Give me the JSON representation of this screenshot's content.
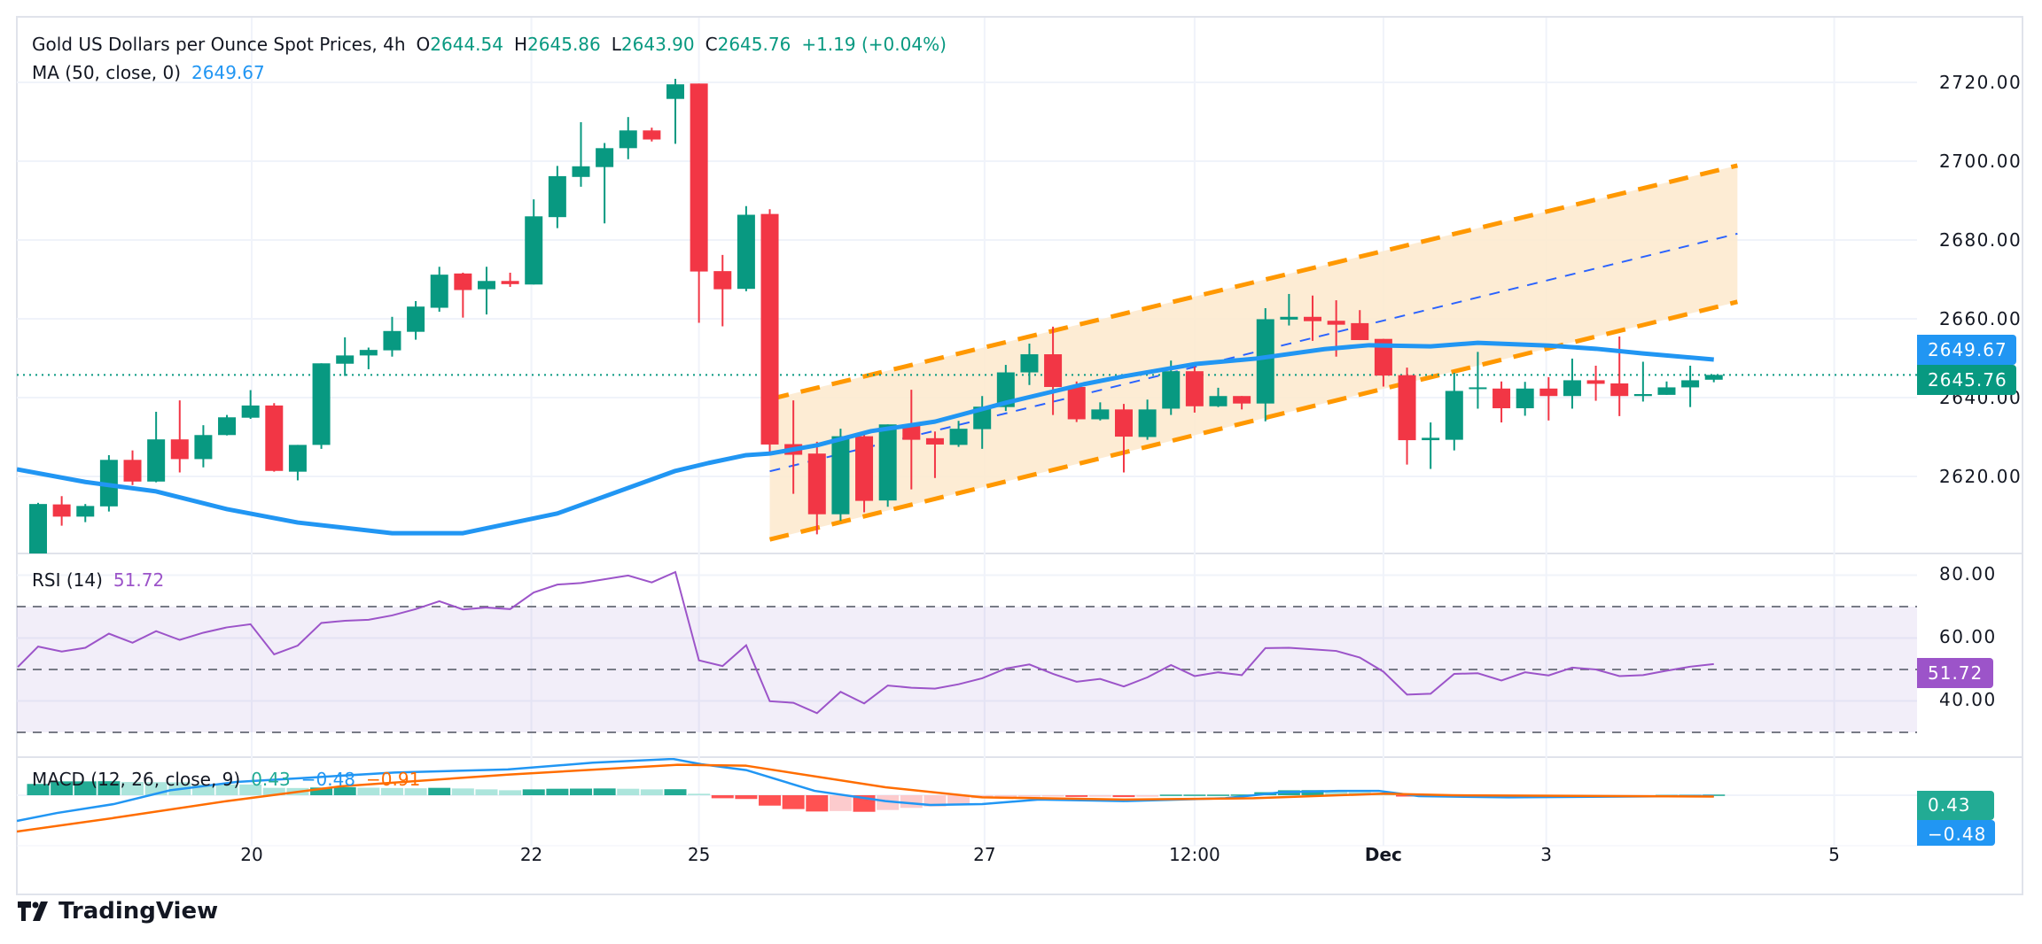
{
  "header": {
    "symbol_title": "Gold US Dollars per Ounce Spot Prices, 4h",
    "open_label": "O",
    "open": "2644.54",
    "high_label": "H",
    "high": "2645.86",
    "low_label": "L",
    "low": "2643.90",
    "close_label": "C",
    "close": "2645.76",
    "change": "+1.19 (+0.04%)"
  },
  "ma_legend": {
    "label": "MA (50, close, 0)",
    "value": "2649.67"
  },
  "rsi_legend": {
    "label": "RSI (14)",
    "value": "51.72"
  },
  "macd_legend": {
    "label": "MACD (12, 26, close, 9)",
    "histogram": "0.43",
    "macd": "−0.48",
    "signal": "−0.91"
  },
  "price_axis": {
    "ticks": [
      "2720.00",
      "2700.00",
      "2680.00",
      "2660.00",
      "2640.00",
      "2620.00"
    ],
    "ma_tag": "2649.67",
    "last_tag": "2645.76"
  },
  "rsi_axis": {
    "ticks": [
      "80.00",
      "60.00",
      "40.00"
    ],
    "tag": "51.72"
  },
  "macd_axis": {
    "hist_tag": "0.43",
    "macd_tag": "−0.48"
  },
  "time_axis": {
    "labels": [
      {
        "text": "20",
        "index": 9.05
      },
      {
        "text": "22",
        "index": 20.9
      },
      {
        "text": "25",
        "index": 28.0
      },
      {
        "text": "27",
        "index": 40.1
      },
      {
        "text": "12:00",
        "index": 49.0
      },
      {
        "text": "Dec",
        "index": 57.0,
        "bold": true
      },
      {
        "text": "3",
        "index": 63.9
      },
      {
        "text": "5",
        "index": 76.1
      }
    ]
  },
  "branding": {
    "name": "TradingView"
  },
  "colors": {
    "up": "#089981",
    "down": "#f23645",
    "ma": "#2196f3",
    "rsi": "#9c54c9",
    "channel": "#ff9800",
    "channel_fill": "#fde9cc",
    "channel_mid": "#2962ff",
    "macd": "#2196f3",
    "signal": "#ff6d00",
    "hist_up_strong": "#22ab94",
    "hist_up_weak": "#ace5dc",
    "hist_down_strong": "#ff5252",
    "hist_down_weak": "#fccbcd"
  },
  "chart_data": {
    "type": "candlestick",
    "price_range": [
      2598,
      2724
    ],
    "price_ticks": [
      2620,
      2640,
      2660,
      2680,
      2700,
      2720
    ],
    "last_price": 2645.76,
    "candles": [
      [
        2600.0,
        2613.3,
        2598.0,
        2613.0
      ],
      [
        2612.9,
        2615.0,
        2607.5,
        2609.8
      ],
      [
        2609.8,
        2613.0,
        2608.4,
        2612.5
      ],
      [
        2612.4,
        2625.4,
        2611.1,
        2624.2
      ],
      [
        2624.2,
        2626.6,
        2617.8,
        2618.7
      ],
      [
        2618.7,
        2636.4,
        2618.5,
        2629.4
      ],
      [
        2629.4,
        2639.3,
        2621.0,
        2624.4
      ],
      [
        2624.4,
        2633.0,
        2622.3,
        2630.5
      ],
      [
        2630.5,
        2635.6,
        2630.4,
        2635.0
      ],
      [
        2634.9,
        2641.9,
        2634.6,
        2638.0
      ],
      [
        2638.0,
        2638.6,
        2621.2,
        2621.4
      ],
      [
        2621.2,
        2628.0,
        2619.0,
        2628.0
      ],
      [
        2628.0,
        2648.7,
        2627.0,
        2648.7
      ],
      [
        2648.6,
        2655.3,
        2645.5,
        2650.7
      ],
      [
        2650.7,
        2652.7,
        2647.2,
        2652.1
      ],
      [
        2652.0,
        2660.5,
        2650.4,
        2656.9
      ],
      [
        2656.7,
        2664.5,
        2654.7,
        2663.1
      ],
      [
        2662.8,
        2673.2,
        2661.8,
        2671.2
      ],
      [
        2671.5,
        2671.7,
        2660.3,
        2667.3
      ],
      [
        2667.5,
        2673.2,
        2661.1,
        2669.6
      ],
      [
        2669.6,
        2671.7,
        2668.1,
        2668.8
      ],
      [
        2668.7,
        2690.3,
        2668.7,
        2686.0
      ],
      [
        2685.8,
        2698.8,
        2683.0,
        2696.2
      ],
      [
        2696.0,
        2709.9,
        2693.5,
        2698.7
      ],
      [
        2698.5,
        2704.6,
        2684.2,
        2703.3
      ],
      [
        2703.3,
        2711.2,
        2700.5,
        2707.8
      ],
      [
        2707.8,
        2708.5,
        2705.0,
        2705.5
      ],
      [
        2715.8,
        2720.9,
        2704.4,
        2719.5
      ],
      [
        2719.7,
        2719.7,
        2659.0,
        2672.0
      ],
      [
        2672.1,
        2676.2,
        2658.1,
        2667.5
      ],
      [
        2667.6,
        2688.6,
        2667.0,
        2686.4
      ],
      [
        2686.6,
        2687.8,
        2626.2,
        2628.1
      ],
      [
        2628.2,
        2639.3,
        2615.6,
        2625.5
      ],
      [
        2625.8,
        2628.8,
        2605.3,
        2610.4
      ],
      [
        2610.4,
        2632.1,
        2608.7,
        2630.2
      ],
      [
        2630.2,
        2631.4,
        2610.9,
        2613.8
      ],
      [
        2613.9,
        2633.2,
        2612.3,
        2633.2
      ],
      [
        2633.2,
        2642.0,
        2616.7,
        2629.3
      ],
      [
        2629.7,
        2631.4,
        2619.6,
        2628.1
      ],
      [
        2628.0,
        2634.1,
        2627.5,
        2632.1
      ],
      [
        2632.0,
        2640.4,
        2627.0,
        2637.7
      ],
      [
        2637.6,
        2648.3,
        2636.6,
        2646.4
      ],
      [
        2646.4,
        2653.7,
        2643.2,
        2651.0
      ],
      [
        2651.0,
        2658.0,
        2635.6,
        2642.7
      ],
      [
        2642.7,
        2644.1,
        2633.8,
        2634.5
      ],
      [
        2634.5,
        2638.8,
        2634.2,
        2637.0
      ],
      [
        2637.0,
        2638.4,
        2621.0,
        2630.1
      ],
      [
        2630.0,
        2639.5,
        2629.3,
        2637.0
      ],
      [
        2637.2,
        2649.4,
        2635.6,
        2646.7
      ],
      [
        2646.7,
        2647.9,
        2636.2,
        2637.8
      ],
      [
        2637.8,
        2642.5,
        2637.6,
        2640.4
      ],
      [
        2640.4,
        2640.4,
        2637.0,
        2638.5
      ],
      [
        2638.5,
        2662.7,
        2634.0,
        2659.9
      ],
      [
        2659.8,
        2666.3,
        2658.3,
        2660.5
      ],
      [
        2660.5,
        2665.9,
        2654.4,
        2659.4
      ],
      [
        2659.5,
        2664.7,
        2650.4,
        2658.5
      ],
      [
        2658.9,
        2662.2,
        2654.6,
        2654.6
      ],
      [
        2654.9,
        2654.9,
        2642.8,
        2645.6
      ],
      [
        2645.7,
        2647.6,
        2623.0,
        2629.2
      ],
      [
        2629.2,
        2633.7,
        2621.9,
        2629.8
      ],
      [
        2629.3,
        2646.3,
        2626.6,
        2641.7
      ],
      [
        2642.3,
        2651.6,
        2637.2,
        2642.6
      ],
      [
        2642.3,
        2644.1,
        2633.7,
        2637.3
      ],
      [
        2637.3,
        2644.0,
        2635.4,
        2642.3
      ],
      [
        2642.3,
        2645.2,
        2634.2,
        2640.4
      ],
      [
        2640.4,
        2649.9,
        2637.2,
        2644.4
      ],
      [
        2644.4,
        2648.1,
        2639.2,
        2643.5
      ],
      [
        2643.6,
        2655.5,
        2635.3,
        2640.4
      ],
      [
        2640.4,
        2649.1,
        2639.0,
        2640.9
      ],
      [
        2640.7,
        2644.1,
        2640.7,
        2642.6
      ],
      [
        2642.6,
        2648.1,
        2637.6,
        2644.4
      ],
      [
        2644.54,
        2645.86,
        2643.9,
        2645.76
      ]
    ],
    "ma50": [
      [
        -0.9,
        2621.8
      ],
      [
        2,
        2618.6
      ],
      [
        5,
        2616.2
      ],
      [
        8,
        2611.7
      ],
      [
        11,
        2608.3
      ],
      [
        15,
        2605.6
      ],
      [
        18,
        2605.6
      ],
      [
        22,
        2610.6
      ],
      [
        27,
        2621.4
      ],
      [
        28.4,
        2623.4
      ],
      [
        30,
        2625.4
      ],
      [
        31,
        2625.8
      ],
      [
        33,
        2627.9
      ],
      [
        35.3,
        2631.5
      ],
      [
        38,
        2633.9
      ],
      [
        41,
        2638.7
      ],
      [
        44.3,
        2643.4
      ],
      [
        46,
        2645.4
      ],
      [
        49,
        2648.5
      ],
      [
        51.6,
        2649.9
      ],
      [
        54.5,
        2652.3
      ],
      [
        56.4,
        2653.3
      ],
      [
        59,
        2653.0
      ],
      [
        61,
        2653.9
      ],
      [
        64,
        2653.2
      ],
      [
        66,
        2652.4
      ],
      [
        68,
        2651.2
      ],
      [
        71,
        2649.67
      ]
    ],
    "channel": {
      "start_index": 31,
      "end_index": 72,
      "upper": [
        2639.6,
        2698.9
      ],
      "middle": [
        2621.3,
        2681.6
      ],
      "lower": [
        2604.0,
        2664.3
      ]
    },
    "rsi": {
      "range": [
        25,
        85
      ],
      "levels": [
        30,
        50,
        70
      ],
      "ticks": [
        40,
        60,
        80
      ],
      "values": [
        57.3,
        55.7,
        56.9,
        61.4,
        58.5,
        62.2,
        59.4,
        61.7,
        63.4,
        64.4,
        54.8,
        57.6,
        64.8,
        65.5,
        65.8,
        67.2,
        69.2,
        71.7,
        69.1,
        69.7,
        69.2,
        74.5,
        77.0,
        77.5,
        78.7,
        79.9,
        77.7,
        81.0,
        52.9,
        51.1,
        57.7,
        39.9,
        39.4,
        36.1,
        42.9,
        39.2,
        44.9,
        44.2,
        43.9,
        45.3,
        47.2,
        50.3,
        51.6,
        48.6,
        46.1,
        47.0,
        44.6,
        47.5,
        51.4,
        47.9,
        49.1,
        48.2,
        56.8,
        56.9,
        56.4,
        55.9,
        53.8,
        49.3,
        42.0,
        42.3,
        48.6,
        48.8,
        46.5,
        49.1,
        48.1,
        50.6,
        50.0,
        47.9,
        48.2,
        49.6,
        50.9,
        51.72
      ]
    },
    "macd": {
      "histogram": [
        7.5,
        9.2,
        9.2,
        9.3,
        8.8,
        8.7,
        8.6,
        7.3,
        7.2,
        7.1,
        4.9,
        4.8,
        5.1,
        5.3,
        5.0,
        4.8,
        4.6,
        4.9,
        4.5,
        3.9,
        3.3,
        3.9,
        4.3,
        4.4,
        4.5,
        4.3,
        3.9,
        4.0,
        1.0,
        -2.0,
        -2.5,
        -6.9,
        -9.2,
        -10.8,
        -10.5,
        -11.0,
        -9.8,
        -8.4,
        -7.5,
        -5.9,
        -2.0,
        -1.4,
        -1.0,
        -0.9,
        -1.1,
        -1.0,
        -1.2,
        -1.0,
        0.4,
        0.4,
        0.4,
        0.5,
        2.0,
        3.3,
        3.4,
        3.0,
        2.0,
        1.0,
        -0.6,
        -0.8,
        -0.6,
        -0.4,
        -0.3,
        -0.2,
        -0.1,
        0.1,
        -0.2,
        -0.4,
        -0.5,
        0.2,
        0.3,
        0.43
      ],
      "macd_line": [
        [
          -0.9,
          -17.1
        ],
        [
          0.8,
          -11.8
        ],
        [
          3.2,
          -5.9
        ],
        [
          5.6,
          3.3
        ],
        [
          8.4,
          8.8
        ],
        [
          11.6,
          11.8
        ],
        [
          15.1,
          15.1
        ],
        [
          19.9,
          17.1
        ],
        [
          23.5,
          21.6
        ],
        [
          26.9,
          24.1
        ],
        [
          28.1,
          20.6
        ],
        [
          30,
          16.7
        ],
        [
          32.9,
          2.9
        ],
        [
          35.9,
          -3.9
        ],
        [
          37.8,
          -6.5
        ],
        [
          40,
          -5.9
        ],
        [
          42.4,
          -2.9
        ],
        [
          46,
          -3.9
        ],
        [
          50.3,
          -2.0
        ],
        [
          52.7,
          2.0
        ],
        [
          55.1,
          2.9
        ],
        [
          56.8,
          2.9
        ],
        [
          58.5,
          -0.6
        ],
        [
          62.3,
          -1.4
        ],
        [
          71,
          -0.48
        ]
      ],
      "signal_line": [
        [
          -0.9,
          -24.1
        ],
        [
          3.2,
          -15.1
        ],
        [
          8,
          -3.9
        ],
        [
          12.8,
          5.9
        ],
        [
          19.9,
          13.7
        ],
        [
          27.1,
          20.2
        ],
        [
          30,
          19.6
        ],
        [
          35.9,
          5.3
        ],
        [
          40,
          -1.4
        ],
        [
          46,
          -2.9
        ],
        [
          51.5,
          -2.0
        ],
        [
          57,
          1.0
        ],
        [
          59.9,
          0
        ],
        [
          71,
          -0.91
        ]
      ]
    }
  }
}
